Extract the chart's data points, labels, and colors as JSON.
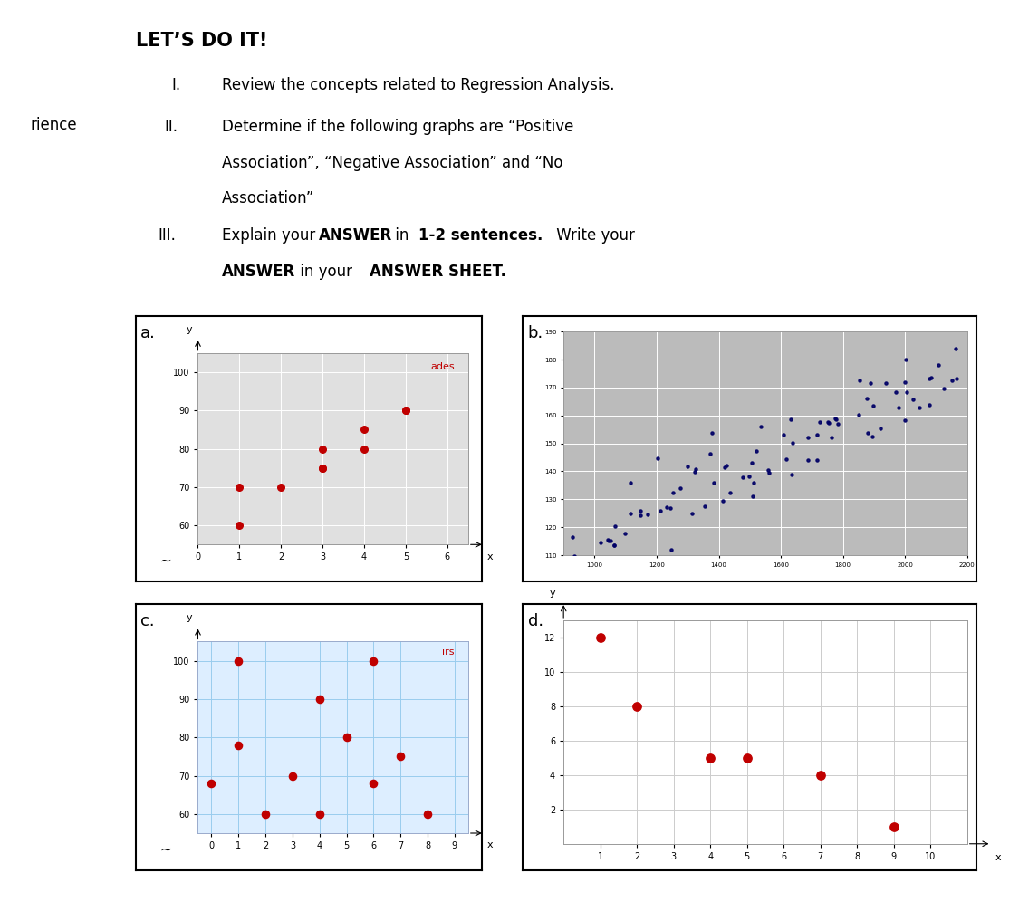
{
  "bg_color": "#ffffff",
  "left_bar_color": "#d8d8d8",
  "rience_text": "rience",
  "divider_color": "#777777",
  "title_text": "LET’S DO IT!",
  "inst1_num": "I.",
  "inst1_text": "Review the concepts related to Regression Analysis.",
  "inst2_num": "II.",
  "inst2_line1": "Determine if the following graphs are “Positive",
  "inst2_line2": "Association”, “Negative Association” and “No",
  "inst2_line3": "Association”",
  "inst3_num": "III.",
  "inst3_pre": "Explain your ",
  "inst3_bold1": "ANSWER",
  "inst3_mid1": " in ",
  "inst3_bold2": "1-2 sentences.",
  "inst3_mid2": " Write your",
  "inst3_bold3": "ANSWER",
  "inst3_mid3": " in your ",
  "inst3_bold4": "ANSWER SHEET.",
  "label_a": "a.",
  "label_b": "b.",
  "label_c": "c.",
  "label_d": "d.",
  "graph_a": {
    "x": [
      1,
      1,
      2,
      3,
      3,
      3,
      4,
      4,
      5,
      5
    ],
    "y": [
      60,
      70,
      70,
      75,
      75,
      80,
      80,
      85,
      90,
      90
    ],
    "color": "#c00000",
    "xlim": [
      0,
      6.5
    ],
    "ylim": [
      55,
      105
    ],
    "xticks": [
      0,
      1,
      2,
      3,
      4,
      5,
      6
    ],
    "yticks": [
      60,
      70,
      80,
      90,
      100
    ],
    "annotation": "ades",
    "annotation_color": "#c00000",
    "bg_color": "#e0e0e0",
    "grid_color": "#ffffff"
  },
  "graph_b": {
    "bg_color": "#bbbbbb",
    "xlim": [
      900,
      2200
    ],
    "ylim": [
      110,
      190
    ],
    "yticks": [
      110,
      120,
      130,
      140,
      150,
      160,
      170,
      180,
      190
    ],
    "xticks": [
      1000,
      1200,
      1400,
      1600,
      1800,
      2000,
      2200
    ],
    "dot_color": "#000066",
    "grid_color": "#ffffff",
    "num_points": 90
  },
  "graph_c": {
    "x": [
      0,
      1,
      1,
      2,
      3,
      4,
      4,
      5,
      6,
      6,
      7,
      8
    ],
    "y": [
      68,
      100,
      78,
      60,
      70,
      90,
      60,
      80,
      100,
      68,
      75,
      60
    ],
    "color": "#c00000",
    "xlim": [
      -0.5,
      9.5
    ],
    "ylim": [
      55,
      105
    ],
    "xticks": [
      0,
      1,
      2,
      3,
      4,
      5,
      6,
      7,
      8,
      9
    ],
    "yticks": [
      60,
      70,
      80,
      90,
      100
    ],
    "annotation": "irs",
    "annotation_color": "#c00000",
    "bg_color": "#ddeeff",
    "grid_color": "#99ccee"
  },
  "graph_d": {
    "x": [
      1,
      2,
      4,
      5,
      7,
      9
    ],
    "y": [
      12,
      8,
      5,
      5,
      4,
      1
    ],
    "color": "#c00000",
    "xlim": [
      0,
      11
    ],
    "ylim": [
      0,
      13
    ],
    "xticks": [
      1,
      2,
      3,
      4,
      5,
      6,
      7,
      8,
      9,
      10
    ],
    "yticks": [
      2,
      4,
      6,
      8,
      10,
      12
    ],
    "bg_color": "#ffffff",
    "grid_color": "#cccccc"
  }
}
